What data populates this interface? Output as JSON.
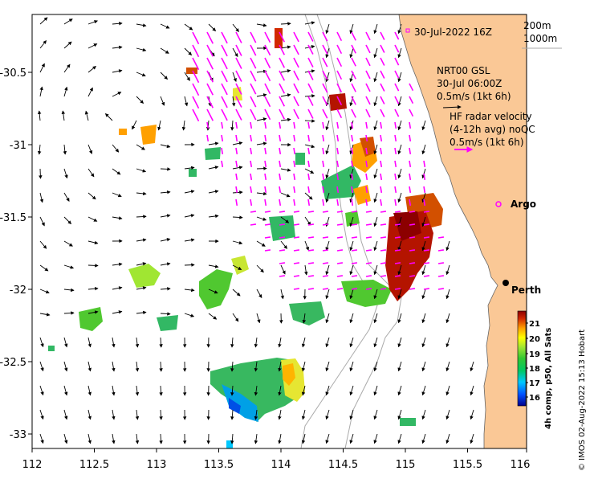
{
  "map": {
    "date_label": "30-Jul-2022 16Z",
    "bathymetry_legend": [
      "200m",
      "1000m"
    ],
    "nrt_label": "NRT00 GSL",
    "nrt_time": "30-Jul 06:00Z",
    "nrt_scale": "0.5m/s (1kt 6h)",
    "hf_title": "HF radar velocity",
    "hf_subtitle": "(4-12h avg) noQC",
    "hf_scale": "0.5m/s (1kt 6h)",
    "argo_label": "Argo",
    "city_label": "Perth",
    "x_ticks": [
      "112",
      "112.5",
      "113",
      "113.5",
      "114",
      "114.5",
      "115",
      "115.5",
      "116"
    ],
    "y_ticks": [
      "-30.5",
      "-31",
      "-31.5",
      "-32",
      "-32.5",
      "-33"
    ],
    "colorbar_title": "4h comp, p50, All Sats",
    "colorbar_ticks": [
      "16",
      "17",
      "18",
      "19",
      "20",
      "21"
    ],
    "credit": "© IMOS 02-Aug-2022 15:13 Hobart",
    "colors": {
      "land": "#fac896",
      "hf_vectors": "#ff00ff",
      "argo": "#ff00ff",
      "coast": "#888888"
    }
  }
}
